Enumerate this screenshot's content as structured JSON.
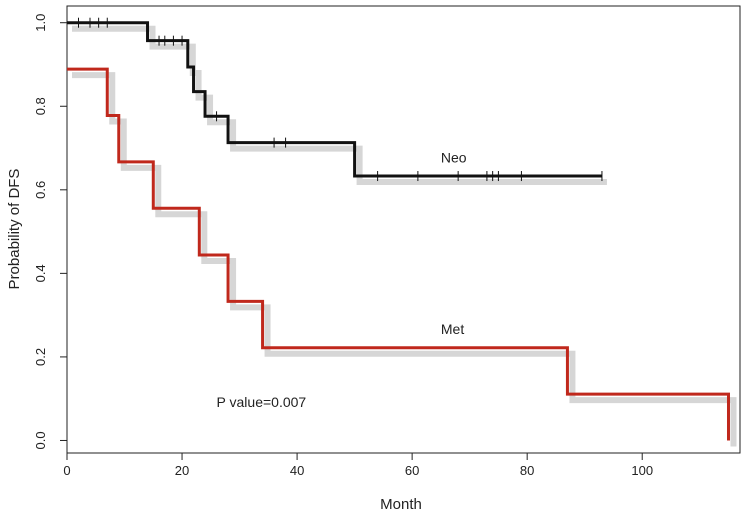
{
  "chart_data": {
    "type": "line",
    "subtype": "kaplan-meier-step",
    "title": "",
    "xlabel": "Month",
    "ylabel": "Probability of DFS",
    "xlim": [
      0,
      117
    ],
    "ylim": [
      -0.03,
      1.04
    ],
    "xticks": [
      0,
      20,
      40,
      60,
      80,
      100
    ],
    "yticks": [
      0.0,
      0.2,
      0.4,
      0.6,
      0.8,
      1.0
    ],
    "ytick_labels": [
      "0.0",
      "0.2",
      "0.4",
      "0.6",
      "0.8",
      "1.0"
    ],
    "grid": false,
    "series": [
      {
        "name": "Neo",
        "color": "#111111",
        "steps": [
          {
            "x": 0,
            "y": 1.0
          },
          {
            "x": 14,
            "y": 0.957
          },
          {
            "x": 21,
            "y": 0.894
          },
          {
            "x": 22,
            "y": 0.835
          },
          {
            "x": 24,
            "y": 0.776
          },
          {
            "x": 28,
            "y": 0.713
          },
          {
            "x": 50,
            "y": 0.633
          },
          {
            "x": 93,
            "y": 0.633
          }
        ],
        "censored": [
          2,
          4,
          5.5,
          7,
          16,
          17,
          18.5,
          20,
          26,
          36,
          38,
          54,
          61,
          68,
          73,
          74,
          75,
          79,
          93
        ]
      },
      {
        "name": "Met",
        "color": "#c0281c",
        "steps": [
          {
            "x": 0,
            "y": 0.889
          },
          {
            "x": 7,
            "y": 0.778
          },
          {
            "x": 9,
            "y": 0.667
          },
          {
            "x": 15,
            "y": 0.556
          },
          {
            "x": 23,
            "y": 0.444
          },
          {
            "x": 28,
            "y": 0.333
          },
          {
            "x": 34,
            "y": 0.222
          },
          {
            "x": 87,
            "y": 0.111
          },
          {
            "x": 115,
            "y": 0.0
          }
        ],
        "censored": []
      }
    ],
    "annotations": [
      {
        "text": "Neo",
        "x": 65,
        "y": 0.665
      },
      {
        "text": "Met",
        "x": 65,
        "y": 0.255
      },
      {
        "text": "P value=0.007",
        "x": 26,
        "y": 0.08
      }
    ]
  }
}
